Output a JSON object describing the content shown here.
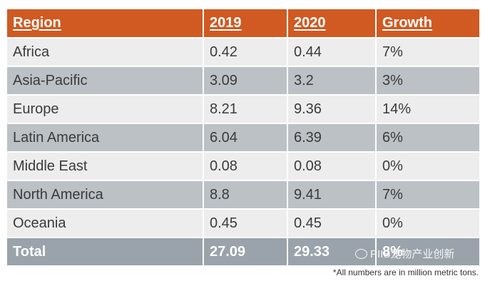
{
  "chart_data": {
    "type": "table",
    "columns": [
      "Region",
      "2019",
      "2020",
      "Growth"
    ],
    "rows": [
      [
        "Africa",
        "0.42",
        "0.44",
        "7%"
      ],
      [
        "Asia-Pacific",
        "3.09",
        "3.2",
        "3%"
      ],
      [
        "Europe",
        "8.21",
        "9.36",
        "14%"
      ],
      [
        "Latin America",
        "6.04",
        "6.39",
        "6%"
      ],
      [
        "Middle East",
        "0.08",
        "0.08",
        "0%"
      ],
      [
        "North America",
        "8.8",
        "9.41",
        "7%"
      ],
      [
        "Oceania",
        "0.45",
        "0.45",
        "0%"
      ]
    ],
    "total": [
      "Total",
      "27.09",
      "29.33",
      "8%"
    ],
    "footnote": "*All numbers are in million metric tons.",
    "watermark": "PIIS宠物产业创新",
    "header_color": "#d05a22",
    "row_colors": [
      "#ededed",
      "#bcc1c6"
    ],
    "total_row_color": "#9aa3ab"
  }
}
